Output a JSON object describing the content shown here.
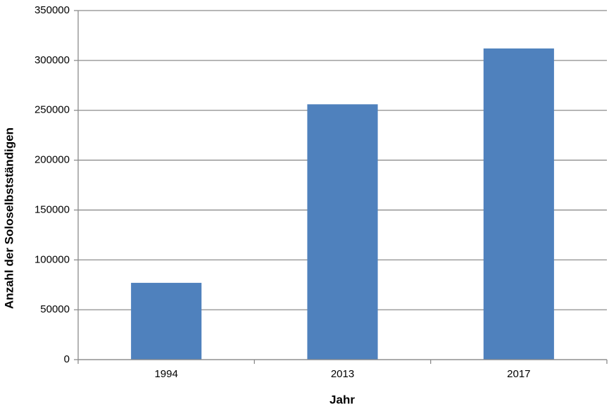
{
  "chart_data": {
    "type": "bar",
    "x_label": "Jahr",
    "y_label": "Anzahl der Soloselbstständigen",
    "categories": [
      "1994",
      "2013",
      "2017"
    ],
    "values": [
      77000,
      256000,
      312000
    ],
    "color": "#4f81bd",
    "ylim": [
      0,
      350000
    ],
    "yticks": [
      0,
      50000,
      100000,
      150000,
      200000,
      250000,
      300000,
      350000
    ],
    "grid": true
  }
}
